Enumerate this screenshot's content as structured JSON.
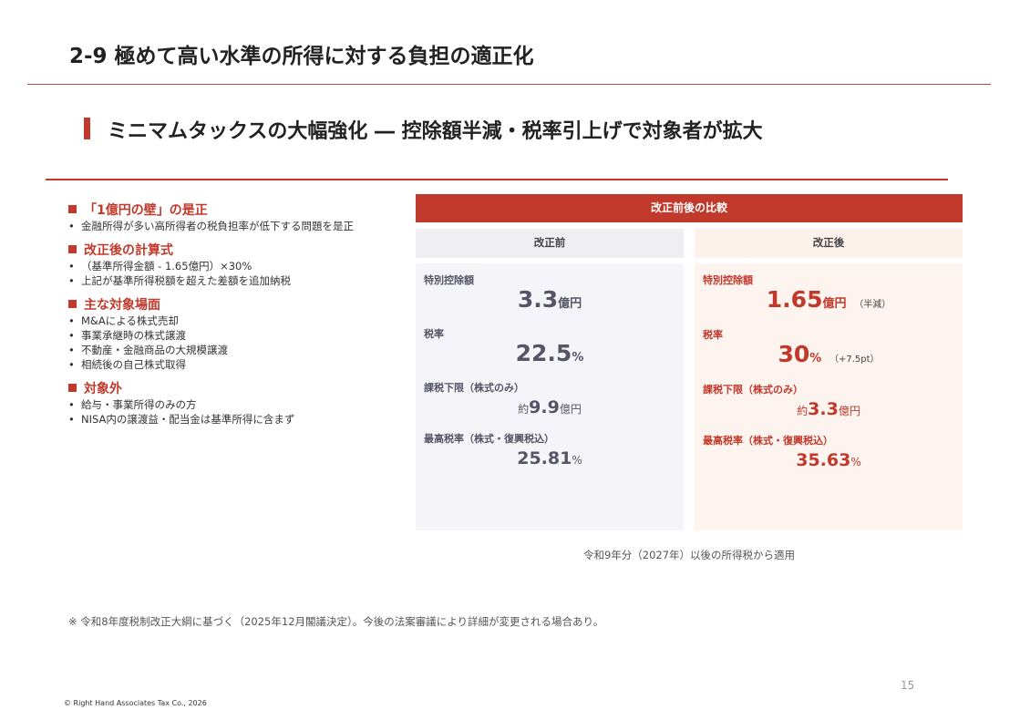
{
  "title": "2-9 極めて高い水準の所得に対する負担の適正化",
  "subtitle": "ミニマムタックスの大幅強化 ― 控除額半減・税率引上げで対象者が拡大",
  "sections": [
    {
      "heading": "「1億円の壁」の是正",
      "items": [
        "金融所得が多い高所得者の税負担率が低下する問題を是正"
      ]
    },
    {
      "heading": "改正後の計算式",
      "items": [
        "（基準所得金額 - 1.65億円）×30%",
        "上記が基準所得税額を超えた差額を追加納税"
      ]
    },
    {
      "heading": "主な対象場面",
      "items": [
        "M&Aによる株式売却",
        "事業承継時の株式譲渡",
        "不動産・金融商品の大規模譲渡",
        "相続後の自己株式取得"
      ]
    },
    {
      "heading": "対象外",
      "items": [
        "給与・事業所得のみの方",
        "NISA内の譲渡益・配当金は基準所得に含まず"
      ]
    }
  ],
  "comparison": {
    "header": "改正前後の比較",
    "before": {
      "label": "改正前",
      "deduction_label": "特別控除額",
      "deduction": "3.3",
      "deduction_unit": "億円",
      "rate_label": "税率",
      "rate": "22.5",
      "rate_unit": "%",
      "floor_label": "課税下限（株式のみ）",
      "floor_prefix": "約",
      "floor": "9.9",
      "floor_unit": "億円",
      "max_label": "最高税率（株式・復興税込）",
      "max": "25.81",
      "max_unit": "%"
    },
    "after": {
      "label": "改正後",
      "deduction_label": "特別控除額",
      "deduction": "1.65",
      "deduction_unit": "億円",
      "deduction_note": "（半減）",
      "rate_label": "税率",
      "rate": "30",
      "rate_unit": "%",
      "rate_note": "（+7.5pt）",
      "floor_label": "課税下限（株式のみ）",
      "floor_prefix": "約",
      "floor": "3.3",
      "floor_unit": "億円",
      "max_label": "最高税率（株式・復興税込）",
      "max": "35.63",
      "max_unit": "%"
    },
    "footnote": "令和9年分（2027年）以後の所得税から適用"
  },
  "note": "※ 令和8年度税制改正大綱に基づく（2025年12月閣議決定）。今後の法案審議により詳細が変更される場合あり。",
  "page_number": "15",
  "copyright": "© Right Hand Associates Tax Co., 2026",
  "colors": {
    "accent": "#c0392b",
    "before_text": "#555566"
  }
}
